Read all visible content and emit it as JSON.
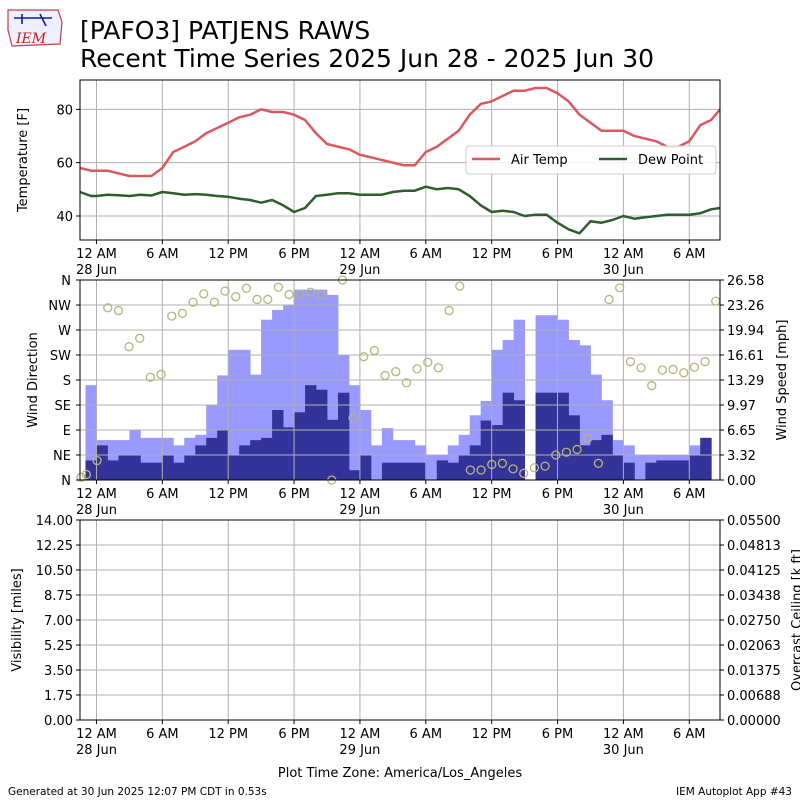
{
  "header": {
    "logo_text": "IEM",
    "title_line1": "[PAFO3] PATJENS RAWS",
    "title_line2": "Recent Time Series 2025 Jun 28 - 2025 Jun 30"
  },
  "footer": {
    "generated": "Generated at 30 Jun 2025 12:07 PM CDT in 0.53s",
    "app": "IEM Autoplot App #43",
    "timezone": "Plot Time Zone: America/Los_Angeles"
  },
  "x_axis": {
    "range_hours": [
      -1.5,
      56.8
    ],
    "ticks": [
      {
        "h": 0,
        "line1": "12 AM",
        "line2": "28 Jun"
      },
      {
        "h": 6,
        "line1": "6 AM",
        "line2": ""
      },
      {
        "h": 12,
        "line1": "12 PM",
        "line2": ""
      },
      {
        "h": 18,
        "line1": "6 PM",
        "line2": ""
      },
      {
        "h": 24,
        "line1": "12 AM",
        "line2": "29 Jun"
      },
      {
        "h": 30,
        "line1": "6 AM",
        "line2": ""
      },
      {
        "h": 36,
        "line1": "12 PM",
        "line2": ""
      },
      {
        "h": 42,
        "line1": "6 PM",
        "line2": ""
      },
      {
        "h": 48,
        "line1": "12 AM",
        "line2": "30 Jun"
      },
      {
        "h": 54,
        "line1": "6 AM",
        "line2": ""
      }
    ]
  },
  "colors": {
    "air_temp": "#d9595f",
    "dew_point": "#2e5e2e",
    "gust": "#9999ff",
    "sknt": "#333399",
    "wind_dir": "#b5b57a",
    "ceiling_label": "#008000",
    "grid": "#b0b0b0"
  },
  "chart_data": [
    {
      "type": "line",
      "ylabel": "Temperature [F]",
      "ylim": [
        31,
        91
      ],
      "yticks": [
        40,
        60,
        80
      ],
      "grid": true,
      "legend_position": "center-right",
      "x": [
        -1.5,
        -0.5,
        0,
        1,
        2,
        3,
        4,
        5,
        6,
        7,
        8,
        9,
        10,
        11,
        12,
        13,
        14,
        15,
        16,
        17,
        18,
        19,
        20,
        21,
        22,
        23,
        24,
        25,
        26,
        27,
        28,
        29,
        30,
        31,
        32,
        33,
        34,
        35,
        36,
        37,
        38,
        39,
        40,
        41,
        42,
        43,
        44,
        45,
        46,
        47,
        48,
        49,
        50,
        51,
        52,
        53,
        54,
        55,
        56,
        56.8
      ],
      "series": [
        {
          "name": "Air Temp",
          "values": [
            58,
            57,
            57,
            57,
            56,
            55,
            55,
            55,
            58,
            64,
            66,
            68,
            71,
            73,
            75,
            77,
            78,
            80,
            79,
            79,
            78,
            76,
            71,
            67,
            66,
            65,
            63,
            62,
            61,
            60,
            59,
            59,
            64,
            66,
            69,
            72,
            78,
            82,
            83,
            85,
            87,
            87,
            88,
            88,
            86,
            83,
            78,
            75,
            72,
            72,
            72,
            70,
            69,
            68,
            66,
            66,
            68,
            74,
            76,
            80
          ]
        },
        {
          "name": "Dew Point",
          "values": [
            49,
            47.5,
            47.5,
            48,
            47.8,
            47.5,
            48,
            47.7,
            49,
            48.5,
            48,
            48.2,
            48,
            47.5,
            47.2,
            46.5,
            46,
            45,
            46,
            44,
            41.5,
            43,
            47.5,
            48,
            48.5,
            48.5,
            48,
            48,
            48,
            49,
            49.5,
            49.5,
            51,
            50,
            50.5,
            50,
            47.5,
            44,
            41.5,
            42,
            41.5,
            40,
            40.5,
            40.5,
            37.5,
            35,
            33.5,
            38,
            37.5,
            38.5,
            40,
            39,
            39.5,
            40,
            40.5,
            40.5,
            40.5,
            41,
            42.5,
            43
          ]
        }
      ]
    },
    {
      "type": "bar",
      "ylabel": "Wind Direction",
      "y2label": "Wind Speed [mph]",
      "direction_ticks": [
        "N",
        "NE",
        "E",
        "SE",
        "S",
        "SW",
        "W",
        "NW",
        "N"
      ],
      "speed_ticks": [
        "0.00",
        "3.32",
        "6.65",
        "9.97",
        "13.29",
        "16.61",
        "19.94",
        "23.26",
        "26.58"
      ],
      "speed_max": 26.58,
      "grid": true,
      "bar_start_hour": -1,
      "series": [
        {
          "name": "Gust",
          "values": [
            12.6,
            5.3,
            5.3,
            5.3,
            6.6,
            5.6,
            5.6,
            5.6,
            4.6,
            5.6,
            6.0,
            10.0,
            13.9,
            17.3,
            17.3,
            14.0,
            21.3,
            22.6,
            23.3,
            25.3,
            25.3,
            25.3,
            24.6,
            16.6,
            12.6,
            9.3,
            4.6,
            6.9,
            5.3,
            5.3,
            4.6,
            3.3,
            3.3,
            4.6,
            6.0,
            8.6,
            10.5,
            17.3,
            18.6,
            21.3,
            0,
            21.9,
            21.9,
            21.3,
            18.6,
            17.9,
            14.0,
            10.6,
            5.3,
            4.6,
            3.3,
            3.3,
            3.3,
            3.3,
            3.3,
            4.6,
            5.6
          ]
        },
        {
          "name": "Wind Speed",
          "values": [
            2.6,
            4.6,
            2.6,
            3.3,
            3.3,
            2.3,
            2.3,
            3.3,
            2.3,
            3.3,
            4.6,
            5.6,
            6.6,
            3.3,
            4.6,
            5.3,
            5.6,
            9.3,
            7.0,
            9.0,
            12.6,
            12.0,
            8.0,
            11.6,
            1.3,
            3.3,
            0.0,
            2.3,
            2.3,
            2.3,
            2.3,
            0.0,
            2.6,
            2.3,
            3.3,
            4.6,
            7.9,
            7.3,
            11.6,
            10.6,
            0,
            11.6,
            11.6,
            11.6,
            8.6,
            4.6,
            5.3,
            6.0,
            3.3,
            2.3,
            0.0,
            2.3,
            2.6,
            2.6,
            2.6,
            3.3,
            5.6
          ]
        },
        {
          "name": "Wind Direction",
          "points": [
            [
              -1,
              5
            ],
            [
              -0.5,
              10
            ],
            [
              0.5,
              35
            ],
            [
              1.5,
              310
            ],
            [
              2.5,
              305
            ],
            [
              3.5,
              240
            ],
            [
              4.5,
              255
            ],
            [
              5.5,
              185
            ],
            [
              6.5,
              190
            ],
            [
              7.5,
              295
            ],
            [
              8.5,
              300
            ],
            [
              9.5,
              320
            ],
            [
              10.5,
              335
            ],
            [
              11.5,
              320
            ],
            [
              12.5,
              340
            ],
            [
              13.5,
              330
            ],
            [
              14.5,
              345
            ],
            [
              15.5,
              325
            ],
            [
              16.5,
              325
            ],
            [
              17.5,
              347
            ],
            [
              18.5,
              334
            ],
            [
              19.5,
              334
            ],
            [
              20.5,
              338
            ],
            [
              21.5,
              333
            ],
            [
              22.5,
              0
            ],
            [
              23.5,
              360
            ],
            [
              24.5,
              112
            ],
            [
              25.5,
              222
            ],
            [
              26.5,
              233
            ],
            [
              27.5,
              188
            ],
            [
              28.5,
              195
            ],
            [
              29.5,
              175
            ],
            [
              30.5,
              200
            ],
            [
              31.5,
              212
            ],
            [
              32.5,
              202
            ],
            [
              33.5,
              305
            ],
            [
              34.5,
              349
            ],
            [
              35.5,
              18
            ],
            [
              36.5,
              18
            ],
            [
              37.5,
              28
            ],
            [
              38.5,
              30
            ],
            [
              39.5,
              20
            ],
            [
              40.5,
              12
            ],
            [
              41.5,
              22
            ],
            [
              42.5,
              25
            ],
            [
              43.5,
              45
            ],
            [
              44.5,
              50
            ],
            [
              45.5,
              55
            ],
            [
              46.5,
              75
            ],
            [
              47.5,
              30
            ],
            [
              48.5,
              325
            ],
            [
              49.5,
              346
            ],
            [
              50.5,
              213
            ],
            [
              51.5,
              202
            ],
            [
              52.5,
              170
            ],
            [
              53.5,
              198
            ],
            [
              54.5,
              199
            ],
            [
              55.5,
              193
            ],
            [
              56.5,
              203
            ],
            [
              57.5,
              213
            ],
            [
              58.5,
              322
            ]
          ]
        }
      ]
    },
    {
      "type": "line",
      "ylabel": "Visibility [miles]",
      "y2label": "Overcast Ceiling [k ft]",
      "yticks": [
        "0.00",
        "1.75",
        "3.50",
        "5.25",
        "7.00",
        "8.75",
        "10.50",
        "12.25",
        "14.00"
      ],
      "y2ticks": [
        "0.00000",
        "0.00688",
        "0.01375",
        "0.02063",
        "0.02750",
        "0.03438",
        "0.04125",
        "0.04813",
        "0.05500"
      ],
      "grid": true,
      "series": []
    }
  ]
}
